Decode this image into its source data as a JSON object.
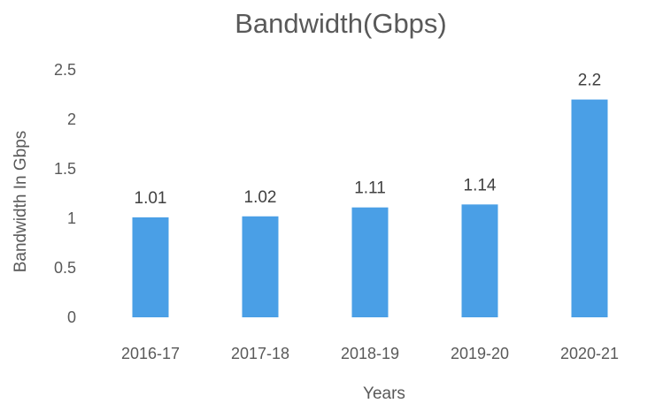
{
  "chart_data": {
    "type": "bar",
    "title": "Bandwidth(Gbps)",
    "xlabel": "Years",
    "ylabel": "Bandwidth In Gbps",
    "categories": [
      "2016-17",
      "2017-18",
      "2018-19",
      "2019-20",
      "2020-21"
    ],
    "values": [
      1.01,
      1.02,
      1.11,
      1.14,
      2.2
    ],
    "data_labels": [
      "1.01",
      "1.02",
      "1.11",
      "1.14",
      "2.2"
    ],
    "ylim": [
      0,
      2.5
    ],
    "yticks": [
      0,
      0.5,
      1,
      1.5,
      2,
      2.5
    ],
    "ytick_labels": [
      "0",
      "0.5",
      "1",
      "1.5",
      "2",
      "2.5"
    ],
    "grid": false,
    "legend": "none",
    "colors": {
      "bar": "#4a9fe6",
      "title": "#595959",
      "axis_text": "#595959",
      "data_label": "#404040"
    }
  }
}
